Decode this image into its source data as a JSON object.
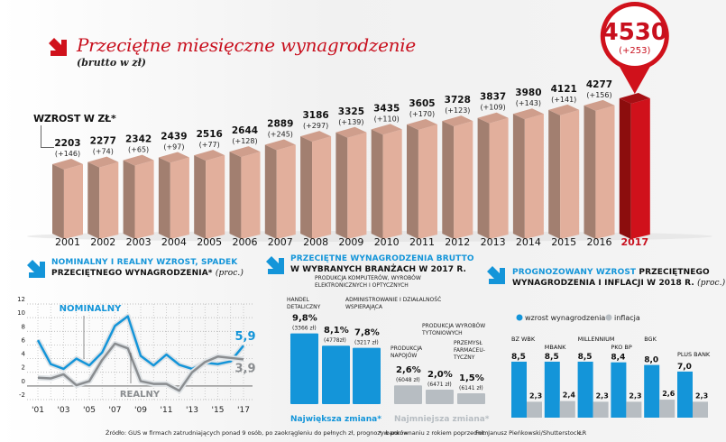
{
  "header": {
    "title": "Przeciętne miesięczne wynagrodzenie",
    "subtitle": "(brutto w zł)",
    "increase_label": "WZROST W ZŁ*",
    "icon": "arrow-down-right-icon",
    "accent_color": "#c8101e"
  },
  "chart_data": [
    {
      "type": "bar",
      "title": "Przeciętne miesięczne wynagrodzenie",
      "subtitle": "(brutto w zł)",
      "xlabel": "",
      "ylabel": "zł",
      "categories": [
        "2001",
        "2002",
        "2003",
        "2004",
        "2005",
        "2006",
        "2007",
        "2008",
        "2009",
        "2010",
        "2011",
        "2012",
        "2013",
        "2014",
        "2015",
        "2016",
        "2017"
      ],
      "values": [
        2203,
        2277,
        2342,
        2439,
        2516,
        2644,
        2889,
        3186,
        3325,
        3435,
        3605,
        3728,
        3837,
        3980,
        4121,
        4277,
        4530
      ],
      "increase_labels": [
        "(+146)",
        "(+74)",
        "(+65)",
        "(+97)",
        "(+77)",
        "(+128)",
        "(+245)",
        "(+297)",
        "(+139)",
        "(+110)",
        "(+170)",
        "(+123)",
        "(+109)",
        "(+143)",
        "(+141)",
        "(+156)",
        "(+253)"
      ],
      "highlight": {
        "category": "2017",
        "value": "4530",
        "increase": "(+253)"
      },
      "colors": {
        "bar": "#e2af9c",
        "bar_side": "#a27f70",
        "highlight": "#d0111b",
        "highlight_side": "#8c0d0d"
      }
    },
    {
      "type": "line",
      "title": "Nominalny i realny wzrost, spadek",
      "title_line2": "przeciętnego wynagrodzenia*",
      "unit": "(proc.)",
      "x": [
        2001,
        2002,
        2003,
        2004,
        2005,
        2006,
        2007,
        2008,
        2009,
        2010,
        2011,
        2012,
        2013,
        2014,
        2015,
        2016,
        2017
      ],
      "xtick_labels": [
        "'01",
        "'03",
        "'05",
        "'07",
        "'09",
        "'11",
        "'13",
        "'15",
        "'17"
      ],
      "ytick_labels": [
        "12",
        "10",
        "8",
        "6",
        "4",
        "2",
        "0",
        "-2"
      ],
      "ylim": [
        -2,
        12
      ],
      "grid": true,
      "series": [
        {
          "name": "NOMINALNY",
          "color": "#1495d9",
          "values": [
            6.7,
            3.2,
            2.5,
            4.0,
            3.0,
            4.9,
            8.8,
            10.2,
            4.4,
            3.0,
            4.6,
            3.1,
            2.5,
            3.4,
            3.2,
            3.6,
            5.9
          ],
          "end_label": "5,9"
        },
        {
          "name": "REALNY",
          "color": "#8a8d90",
          "values": [
            1.2,
            1.1,
            1.7,
            0.1,
            0.7,
            3.8,
            6.2,
            5.5,
            0.7,
            0.3,
            0.3,
            -0.7,
            2.0,
            3.5,
            4.3,
            4.1,
            3.9
          ],
          "end_label": "3,9"
        }
      ]
    },
    {
      "type": "bar",
      "title": "Przeciętne wynagrodzenia brutto",
      "title_line2": "w wybranych branżach w 2017 r.",
      "categories": [
        "HANDEL DETALICZNY",
        "PRODUKCJA KOMPUTERÓW, WYROBÓW ELEKTRONICZNYCH I OPTYCZNYCH",
        "ADMINISTROWANIE I DZIAŁALNOŚĆ WSPIERAJĄCA",
        "PRODUKCJA NAPOJÓW",
        "PRODUKCJA WYROBÓW TYTONIOWYCH",
        "PRZEMYSŁ FARMACEU-TYCZNY"
      ],
      "values": [
        9.8,
        8.1,
        7.8,
        2.6,
        2.0,
        1.5
      ],
      "value_labels": [
        "9,8%",
        "8,1%",
        "7,8%",
        "2,6%",
        "2,0%",
        "1,5%"
      ],
      "salary_labels": [
        "(3366 zł)",
        "(4778zł)",
        "(3217 zł)",
        "(6048 zł)",
        "(6471 zł)",
        "(6141 zł)"
      ],
      "groups": [
        {
          "name": "Największa zmiana*",
          "color": "#1495d9",
          "members": [
            0,
            1,
            2
          ]
        },
        {
          "name": "Najmniejsza zmiana*",
          "color": "#b7bdc2",
          "members": [
            3,
            4,
            5
          ]
        }
      ]
    },
    {
      "type": "bar",
      "title": "Prognozowany wzrost",
      "title_rest": "przeciętnego",
      "title_line2": "wynagrodzenia i inflacji w 2018 r.",
      "unit": "(proc.)",
      "categories": [
        "BZ WBK",
        "MBANK",
        "MILLENNIUM",
        "PKO BP",
        "BGK",
        "PLUS BANK"
      ],
      "series": [
        {
          "name": "wzrost wynagrodzenia",
          "color": "#1495d9",
          "values": [
            8.5,
            8.5,
            8.5,
            8.4,
            8.0,
            7.0
          ],
          "labels": [
            "8,5",
            "8,5",
            "8,5",
            "8,4",
            "8,0",
            "7,0"
          ]
        },
        {
          "name": "inflacja",
          "color": "#b7bdc2",
          "values": [
            2.3,
            2.4,
            2.3,
            2.3,
            2.6,
            2.3
          ],
          "labels": [
            "2,3",
            "2,4",
            "2,3",
            "2,3",
            "2,6",
            "2,3"
          ]
        }
      ],
      "legend": "top-left"
    }
  ],
  "footer": {
    "source": "Źródło: GUS w firmach zatrudniających ponad 9 osób, po zaokrągleniu do pełnych zł, prognozy banków",
    "note": "* w porównaniu z rokiem poprzednim",
    "photo": "Fot. Janusz Pieńkowski/Shutterstock",
    "initials": "ŁR"
  }
}
